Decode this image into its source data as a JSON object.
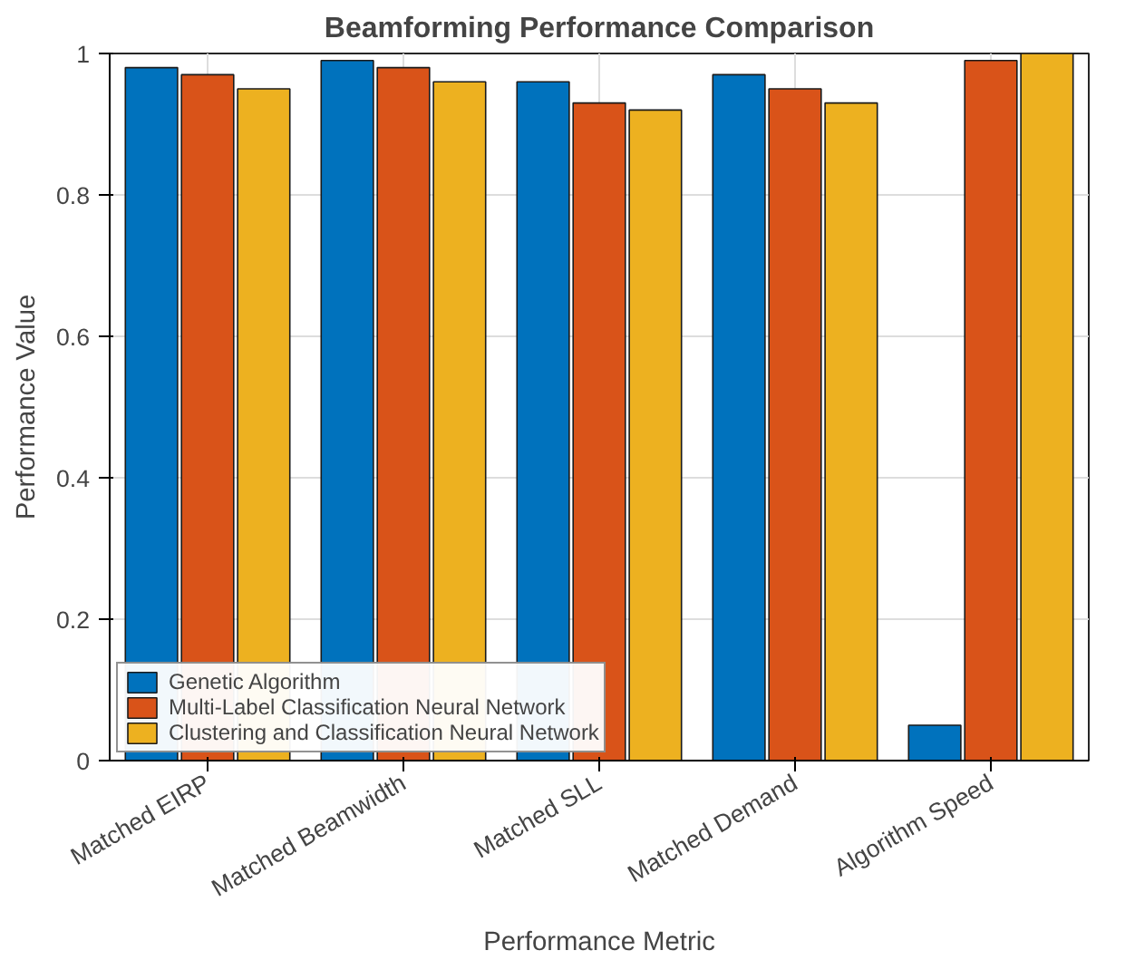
{
  "chart_data": {
    "type": "bar",
    "title": "Beamforming Performance Comparison",
    "xlabel": "Performance Metric",
    "ylabel": "Performance Value",
    "categories": [
      "Matched EIRP",
      "Matched Beamwidth",
      "Matched SLL",
      "Matched Demand",
      "Algorithm Speed"
    ],
    "series": [
      {
        "name": "Genetic Algorithm",
        "color": "#0072bd",
        "values": [
          0.98,
          0.99,
          0.96,
          0.97,
          0.05
        ]
      },
      {
        "name": "Multi-Label Classification Neural Network",
        "color": "#d95319",
        "values": [
          0.97,
          0.98,
          0.93,
          0.95,
          0.99
        ]
      },
      {
        "name": "Clustering and Classification Neural Network",
        "color": "#edb120",
        "values": [
          0.95,
          0.96,
          0.92,
          0.93,
          1.0
        ]
      }
    ],
    "ylim": [
      0,
      1
    ],
    "yticks": [
      0,
      0.2,
      0.4,
      0.6,
      0.8,
      1
    ],
    "grid": true,
    "legend": "bottom left"
  }
}
